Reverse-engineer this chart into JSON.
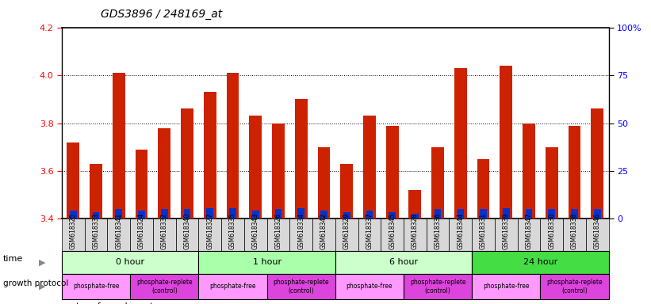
{
  "title": "GDS3896 / 248169_at",
  "samples": [
    "GSM618325",
    "GSM618333",
    "GSM618341",
    "GSM618324",
    "GSM618332",
    "GSM618340",
    "GSM618327",
    "GSM618335",
    "GSM618343",
    "GSM618326",
    "GSM618334",
    "GSM618342",
    "GSM618329",
    "GSM618337",
    "GSM618345",
    "GSM618328",
    "GSM618336",
    "GSM618344",
    "GSM618331",
    "GSM618339",
    "GSM618347",
    "GSM618330",
    "GSM618338",
    "GSM618346"
  ],
  "red_values": [
    3.72,
    3.63,
    4.01,
    3.69,
    3.78,
    3.86,
    3.93,
    4.01,
    3.83,
    3.8,
    3.9,
    3.7,
    3.63,
    3.83,
    3.79,
    3.52,
    3.7,
    4.03,
    3.65,
    4.04,
    3.8,
    3.7,
    3.79,
    3.86
  ],
  "blue_heights": [
    0.035,
    0.028,
    0.04,
    0.035,
    0.04,
    0.04,
    0.045,
    0.045,
    0.035,
    0.04,
    0.045,
    0.035,
    0.028,
    0.035,
    0.028,
    0.02,
    0.04,
    0.04,
    0.04,
    0.045,
    0.04,
    0.04,
    0.04,
    0.04
  ],
  "ylim_left": [
    3.4,
    4.2
  ],
  "ylim_right": [
    0,
    100
  ],
  "yticks_left": [
    3.4,
    3.6,
    3.8,
    4.0,
    4.2
  ],
  "yticks_right": [
    0,
    25,
    50,
    75,
    100
  ],
  "ytick_labels_right": [
    "0",
    "25",
    "50",
    "75",
    "100%"
  ],
  "grid_lines": [
    3.6,
    3.8,
    4.0
  ],
  "bar_bottom": 3.4,
  "red_color": "#cc2200",
  "blue_color": "#0033cc",
  "time_groups": [
    {
      "label": "0 hour",
      "start": 0,
      "end": 6,
      "color": "#ccffcc"
    },
    {
      "label": "1 hour",
      "start": 6,
      "end": 12,
      "color": "#aaffaa"
    },
    {
      "label": "6 hour",
      "start": 12,
      "end": 18,
      "color": "#ccffcc"
    },
    {
      "label": "24 hour",
      "start": 18,
      "end": 24,
      "color": "#44dd44"
    }
  ],
  "protocol_groups": [
    {
      "label": "phosphate-free",
      "start": 0,
      "end": 3,
      "color": "#ff99ff"
    },
    {
      "label": "phosphate-replete\n(control)",
      "start": 3,
      "end": 6,
      "color": "#ee55ee"
    },
    {
      "label": "phosphate-free",
      "start": 6,
      "end": 9,
      "color": "#ff99ff"
    },
    {
      "label": "phosphate-replete\n(control)",
      "start": 9,
      "end": 12,
      "color": "#ee55ee"
    },
    {
      "label": "phosphate-free",
      "start": 12,
      "end": 15,
      "color": "#ff99ff"
    },
    {
      "label": "phosphate-replete\n(control)",
      "start": 15,
      "end": 18,
      "color": "#ee55ee"
    },
    {
      "label": "phosphate-free",
      "start": 18,
      "end": 21,
      "color": "#ff99ff"
    },
    {
      "label": "phosphate-replete\n(control)",
      "start": 21,
      "end": 24,
      "color": "#ee55ee"
    }
  ],
  "bar_width": 0.55,
  "background_color": "#ffffff",
  "label_bg_color": "#d8d8d8"
}
